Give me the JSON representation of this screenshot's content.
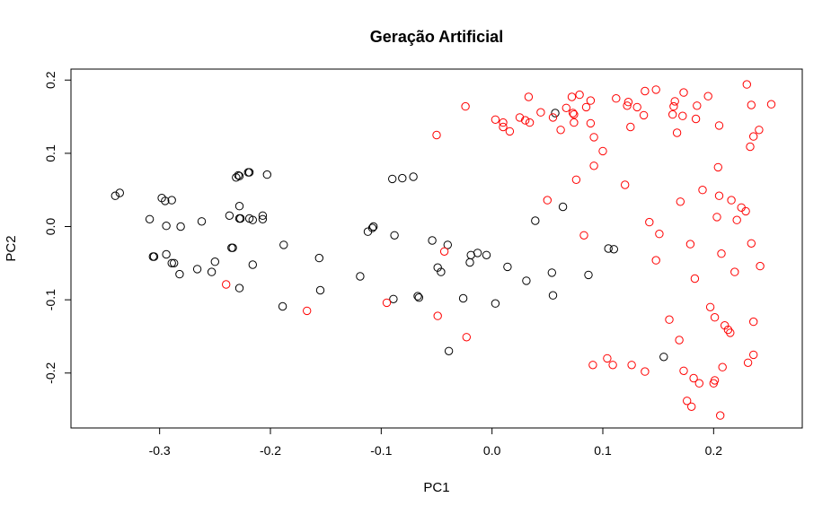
{
  "chart_data": {
    "type": "scatter",
    "title": "Geração Artificial",
    "xlabel": "PC1",
    "ylabel": "PC2",
    "xlim": [
      -0.38,
      0.28
    ],
    "ylim": [
      -0.275,
      0.215
    ],
    "xticks": [
      "-0.3",
      "-0.2",
      "-0.1",
      "0.0",
      "0.1",
      "0.2"
    ],
    "xtick_values": [
      -0.3,
      -0.2,
      -0.1,
      0.0,
      0.1,
      0.2
    ],
    "yticks": [
      "-0.2",
      "-0.1",
      "0.0",
      "0.1",
      "0.2"
    ],
    "ytick_values": [
      -0.2,
      -0.1,
      0.0,
      0.1,
      0.2
    ],
    "grid": false,
    "legend": "none",
    "series": [
      {
        "color": "#000000",
        "points": [
          [
            -0.34,
            0.042
          ],
          [
            -0.336,
            0.046
          ],
          [
            -0.309,
            0.01
          ],
          [
            -0.306,
            -0.041
          ],
          [
            -0.305,
            -0.041
          ],
          [
            -0.298,
            0.039
          ],
          [
            -0.295,
            0.035
          ],
          [
            -0.294,
            0.001
          ],
          [
            -0.294,
            -0.038
          ],
          [
            -0.289,
            0.036
          ],
          [
            -0.289,
            -0.05
          ],
          [
            -0.287,
            -0.05
          ],
          [
            -0.282,
            -0.065
          ],
          [
            -0.281,
            0.0
          ],
          [
            -0.266,
            -0.058
          ],
          [
            -0.262,
            0.007
          ],
          [
            -0.253,
            -0.062
          ],
          [
            -0.25,
            -0.048
          ],
          [
            -0.237,
            0.015
          ],
          [
            -0.235,
            -0.029
          ],
          [
            -0.234,
            -0.029
          ],
          [
            -0.231,
            0.067
          ],
          [
            -0.229,
            0.07
          ],
          [
            -0.228,
            0.069
          ],
          [
            -0.228,
            0.028
          ],
          [
            -0.228,
            0.011
          ],
          [
            -0.227,
            0.011
          ],
          [
            -0.228,
            -0.084
          ],
          [
            -0.22,
            0.074
          ],
          [
            -0.219,
            0.074
          ],
          [
            -0.219,
            0.011
          ],
          [
            -0.216,
            0.009
          ],
          [
            -0.216,
            -0.052
          ],
          [
            -0.207,
            0.01
          ],
          [
            -0.207,
            0.015
          ],
          [
            -0.203,
            0.071
          ],
          [
            -0.188,
            -0.025
          ],
          [
            -0.189,
            -0.109
          ],
          [
            -0.156,
            -0.043
          ],
          [
            -0.155,
            -0.087
          ],
          [
            -0.119,
            -0.068
          ],
          [
            -0.112,
            -0.007
          ],
          [
            -0.108,
            -0.002
          ],
          [
            -0.107,
            0.0
          ],
          [
            -0.09,
            0.065
          ],
          [
            -0.088,
            -0.012
          ],
          [
            -0.089,
            -0.099
          ],
          [
            -0.081,
            0.066
          ],
          [
            -0.071,
            0.068
          ],
          [
            -0.067,
            -0.095
          ],
          [
            -0.066,
            -0.097
          ],
          [
            -0.054,
            -0.019
          ],
          [
            -0.049,
            -0.056
          ],
          [
            -0.046,
            -0.062
          ],
          [
            -0.04,
            -0.025
          ],
          [
            -0.039,
            -0.17
          ],
          [
            -0.026,
            -0.098
          ],
          [
            -0.02,
            -0.049
          ],
          [
            -0.019,
            -0.039
          ],
          [
            -0.013,
            -0.036
          ],
          [
            -0.005,
            -0.039
          ],
          [
            0.003,
            -0.105
          ],
          [
            0.014,
            -0.055
          ],
          [
            0.031,
            -0.074
          ],
          [
            0.039,
            0.008
          ],
          [
            0.054,
            -0.063
          ],
          [
            0.055,
            -0.094
          ],
          [
            0.057,
            0.155
          ],
          [
            0.064,
            0.027
          ],
          [
            0.087,
            -0.066
          ],
          [
            0.105,
            -0.03
          ],
          [
            0.11,
            -0.031
          ],
          [
            0.155,
            -0.178
          ]
        ]
      },
      {
        "color": "#ff0000",
        "points": [
          [
            -0.24,
            -0.079
          ],
          [
            -0.167,
            -0.115
          ],
          [
            -0.095,
            -0.104
          ],
          [
            -0.05,
            0.125
          ],
          [
            -0.049,
            -0.122
          ],
          [
            -0.043,
            -0.034
          ],
          [
            -0.023,
            -0.151
          ],
          [
            -0.024,
            0.164
          ],
          [
            0.003,
            0.146
          ],
          [
            0.01,
            0.142
          ],
          [
            0.01,
            0.136
          ],
          [
            0.016,
            0.13
          ],
          [
            0.025,
            0.149
          ],
          [
            0.03,
            0.145
          ],
          [
            0.033,
            0.177
          ],
          [
            0.034,
            0.142
          ],
          [
            0.044,
            0.156
          ],
          [
            0.05,
            0.036
          ],
          [
            0.055,
            0.149
          ],
          [
            0.062,
            0.132
          ],
          [
            0.067,
            0.162
          ],
          [
            0.072,
            0.177
          ],
          [
            0.073,
            0.155
          ],
          [
            0.074,
            0.153
          ],
          [
            0.074,
            0.142
          ],
          [
            0.076,
            0.064
          ],
          [
            0.079,
            0.18
          ],
          [
            0.083,
            -0.012
          ],
          [
            0.085,
            0.163
          ],
          [
            0.089,
            0.172
          ],
          [
            0.089,
            0.141
          ],
          [
            0.092,
            0.122
          ],
          [
            0.092,
            0.083
          ],
          [
            0.091,
            -0.189
          ],
          [
            0.1,
            0.103
          ],
          [
            0.104,
            -0.18
          ],
          [
            0.109,
            -0.189
          ],
          [
            0.112,
            0.175
          ],
          [
            0.12,
            0.057
          ],
          [
            0.122,
            0.165
          ],
          [
            0.123,
            0.17
          ],
          [
            0.125,
            0.136
          ],
          [
            0.126,
            -0.189
          ],
          [
            0.131,
            0.163
          ],
          [
            0.137,
            0.152
          ],
          [
            0.138,
            0.185
          ],
          [
            0.138,
            -0.198
          ],
          [
            0.142,
            0.006
          ],
          [
            0.148,
            0.187
          ],
          [
            0.148,
            -0.046
          ],
          [
            0.151,
            -0.01
          ],
          [
            0.16,
            -0.127
          ],
          [
            0.163,
            0.153
          ],
          [
            0.164,
            0.164
          ],
          [
            0.165,
            0.171
          ],
          [
            0.167,
            0.128
          ],
          [
            0.169,
            -0.155
          ],
          [
            0.17,
            0.034
          ],
          [
            0.172,
            0.151
          ],
          [
            0.173,
            -0.197
          ],
          [
            0.173,
            0.183
          ],
          [
            0.176,
            -0.238
          ],
          [
            0.179,
            -0.024
          ],
          [
            0.18,
            -0.246
          ],
          [
            0.182,
            -0.207
          ],
          [
            0.183,
            -0.071
          ],
          [
            0.184,
            0.147
          ],
          [
            0.185,
            0.165
          ],
          [
            0.187,
            -0.214
          ],
          [
            0.19,
            0.05
          ],
          [
            0.195,
            0.178
          ],
          [
            0.197,
            -0.11
          ],
          [
            0.2,
            -0.214
          ],
          [
            0.201,
            -0.21
          ],
          [
            0.201,
            -0.124
          ],
          [
            0.203,
            0.013
          ],
          [
            0.204,
            0.081
          ],
          [
            0.205,
            0.138
          ],
          [
            0.205,
            0.042
          ],
          [
            0.206,
            -0.258
          ],
          [
            0.207,
            -0.037
          ],
          [
            0.208,
            -0.192
          ],
          [
            0.21,
            -0.135
          ],
          [
            0.213,
            -0.141
          ],
          [
            0.215,
            -0.145
          ],
          [
            0.216,
            0.036
          ],
          [
            0.219,
            -0.062
          ],
          [
            0.221,
            0.009
          ],
          [
            0.225,
            0.026
          ],
          [
            0.229,
            0.021
          ],
          [
            0.23,
            0.194
          ],
          [
            0.231,
            -0.186
          ],
          [
            0.233,
            0.109
          ],
          [
            0.234,
            -0.023
          ],
          [
            0.234,
            0.166
          ],
          [
            0.236,
            -0.13
          ],
          [
            0.236,
            -0.175
          ],
          [
            0.236,
            0.123
          ],
          [
            0.241,
            0.132
          ],
          [
            0.242,
            -0.054
          ],
          [
            0.252,
            0.167
          ]
        ]
      }
    ]
  }
}
